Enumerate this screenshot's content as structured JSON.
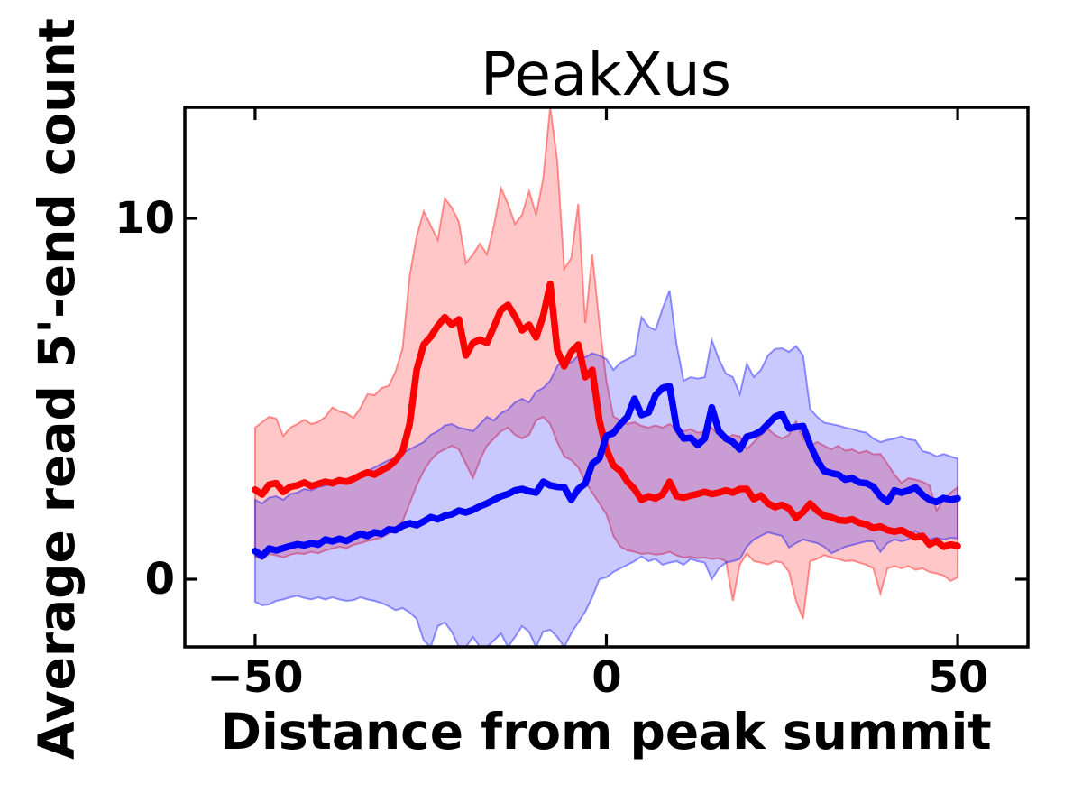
{
  "figure": {
    "background": "#ffffff"
  },
  "chart_data": {
    "type": "line",
    "title": "PeakXus",
    "xlabel": "Distance from peak summit",
    "ylabel": "Average read 5'-end count",
    "xlim": [
      -60,
      60
    ],
    "ylim": [
      -1.875,
      13.075
    ],
    "xticks": [
      -50,
      0,
      50
    ],
    "yticks": [
      0,
      10
    ],
    "xtick_labels": [
      "−50",
      "0",
      "50"
    ],
    "ytick_labels": [
      "0",
      "10"
    ],
    "grid": false,
    "legend": "none",
    "axis_color": "#000000",
    "x": [
      -50,
      -49,
      -48,
      -47,
      -46,
      -45,
      -44,
      -43,
      -42,
      -41,
      -40,
      -39,
      -38,
      -37,
      -36,
      -35,
      -34,
      -33,
      -32,
      -31,
      -30,
      -29,
      -28,
      -27,
      -26,
      -25,
      -24,
      -23,
      -22,
      -21,
      -20,
      -19,
      -18,
      -17,
      -16,
      -15,
      -14,
      -13,
      -12,
      -11,
      -10,
      -9,
      -8,
      -7,
      -6,
      -5,
      -4,
      -3,
      -2,
      -1,
      0,
      1,
      2,
      3,
      4,
      5,
      6,
      7,
      8,
      9,
      10,
      11,
      12,
      13,
      14,
      15,
      16,
      17,
      18,
      19,
      20,
      21,
      22,
      23,
      24,
      25,
      26,
      27,
      28,
      29,
      30,
      31,
      32,
      33,
      34,
      35,
      36,
      37,
      38,
      39,
      40,
      41,
      42,
      43,
      44,
      45,
      46,
      47,
      48,
      49,
      50
    ],
    "series": [
      {
        "name": "red-mean-line",
        "color": "#ff0000",
        "linewidth": 7.5,
        "values": [
          2.48,
          2.35,
          2.62,
          2.66,
          2.42,
          2.56,
          2.6,
          2.68,
          2.58,
          2.64,
          2.7,
          2.66,
          2.74,
          2.7,
          2.78,
          2.88,
          2.96,
          2.9,
          3.02,
          3.12,
          3.3,
          3.55,
          4.3,
          5.8,
          6.5,
          6.72,
          7.02,
          7.26,
          7.05,
          7.2,
          6.2,
          6.55,
          6.64,
          6.55,
          7.0,
          7.46,
          7.6,
          7.28,
          6.9,
          7.05,
          6.7,
          7.3,
          8.18,
          6.35,
          5.9,
          6.3,
          6.5,
          5.6,
          5.8,
          4.4,
          3.6,
          3.15,
          3.0,
          2.7,
          2.5,
          2.2,
          2.3,
          2.24,
          2.35,
          2.7,
          2.3,
          2.26,
          2.32,
          2.36,
          2.42,
          2.36,
          2.4,
          2.46,
          2.4,
          2.5,
          2.5,
          2.22,
          2.32,
          2.1,
          2.0,
          2.06,
          1.96,
          1.7,
          1.86,
          2.1,
          1.9,
          1.76,
          1.72,
          1.64,
          1.62,
          1.66,
          1.56,
          1.52,
          1.42,
          1.46,
          1.36,
          1.32,
          1.36,
          1.26,
          1.16,
          1.2,
          0.96,
          1.06,
          0.9,
          0.96,
          0.92
        ]
      },
      {
        "name": "blue-mean-line",
        "color": "#0000ff",
        "linewidth": 7.5,
        "values": [
          0.78,
          0.64,
          0.85,
          0.8,
          0.86,
          0.92,
          0.97,
          0.94,
          1.0,
          0.96,
          1.1,
          1.05,
          1.12,
          1.06,
          1.16,
          1.26,
          1.2,
          1.3,
          1.26,
          1.38,
          1.36,
          1.48,
          1.55,
          1.5,
          1.6,
          1.72,
          1.66,
          1.76,
          1.8,
          1.9,
          1.85,
          1.92,
          2.02,
          2.1,
          2.2,
          2.3,
          2.36,
          2.46,
          2.5,
          2.44,
          2.4,
          2.7,
          2.6,
          2.56,
          2.55,
          2.2,
          2.5,
          2.65,
          3.2,
          3.35,
          3.97,
          4.05,
          4.3,
          4.5,
          5.0,
          4.55,
          4.62,
          5.1,
          5.3,
          5.35,
          4.2,
          3.9,
          3.92,
          3.72,
          3.9,
          4.76,
          4.1,
          3.9,
          3.8,
          3.6,
          3.95,
          4.0,
          4.1,
          4.3,
          4.5,
          4.58,
          4.18,
          4.22,
          4.24,
          3.72,
          3.3,
          3.0,
          2.94,
          2.9,
          2.76,
          2.8,
          2.68,
          2.66,
          2.56,
          2.3,
          2.14,
          2.46,
          2.4,
          2.46,
          2.54,
          2.34,
          2.2,
          2.14,
          2.25,
          2.2,
          2.24
        ]
      }
    ],
    "bands": [
      {
        "name": "red-band",
        "color": "#ff0000",
        "fill_opacity": 0.22,
        "upper": [
          4.2,
          4.35,
          4.5,
          4.45,
          3.97,
          4.2,
          4.3,
          4.42,
          4.3,
          4.36,
          4.5,
          4.76,
          4.65,
          4.6,
          4.47,
          4.75,
          5.13,
          5.1,
          5.3,
          5.36,
          5.76,
          6.4,
          8.4,
          9.5,
          10.2,
          9.8,
          9.4,
          10.55,
          10.3,
          9.9,
          8.76,
          9.0,
          9.3,
          9.0,
          9.8,
          10.84,
          10.4,
          9.84,
          10.1,
          10.76,
          10.1,
          11.1,
          13.1,
          11.6,
          8.6,
          8.9,
          10.4,
          7.1,
          9.0,
          7.1,
          5.5,
          4.51,
          4.4,
          4.3,
          4.35,
          4.25,
          4.2,
          4.26,
          4.2,
          4.3,
          4.16,
          4.1,
          4.16,
          4.06,
          4.1,
          4.2,
          4.0,
          3.9,
          4.0,
          3.96,
          3.6,
          3.8,
          4.0,
          4.16,
          4.0,
          3.9,
          4.0,
          4.38,
          3.9,
          3.7,
          3.8,
          3.7,
          3.6,
          3.7,
          3.56,
          3.6,
          3.5,
          3.56,
          3.46,
          3.47,
          3.2,
          2.9,
          2.67,
          2.8,
          2.76,
          2.7,
          2.6,
          1.9,
          2.2,
          2.4,
          2.55
        ],
        "lower": [
          0.62,
          0.55,
          0.7,
          0.66,
          0.6,
          0.68,
          0.72,
          0.7,
          0.76,
          0.72,
          0.8,
          0.85,
          0.9,
          0.86,
          0.95,
          1.0,
          1.06,
          1.1,
          1.16,
          1.26,
          1.4,
          1.6,
          2.1,
          2.6,
          3.0,
          3.3,
          3.5,
          3.6,
          3.7,
          3.6,
          3.2,
          2.8,
          3.3,
          3.7,
          3.9,
          4.1,
          4.2,
          4.0,
          3.9,
          4.0,
          4.4,
          4.5,
          4.3,
          3.8,
          3.4,
          3.3,
          3.1,
          2.7,
          2.4,
          2.1,
          1.8,
          1.2,
          0.9,
          0.8,
          0.76,
          0.7,
          0.72,
          0.68,
          0.7,
          0.76,
          0.66,
          0.6,
          0.62,
          0.58,
          0.6,
          0.56,
          0.58,
          0.5,
          -0.6,
          0.4,
          0.71,
          0.5,
          0.46,
          0.41,
          0.5,
          0.46,
          0.2,
          -0.61,
          -1.1,
          0.5,
          0.56,
          0.67,
          0.6,
          0.56,
          0.5,
          0.52,
          0.46,
          0.4,
          0.3,
          -0.4,
          0.3,
          0.36,
          0.3,
          0.36,
          0.26,
          0.3,
          0.2,
          0.16,
          0.1,
          -0.05,
          0.05
        ]
      },
      {
        "name": "blue-band",
        "color": "#0000ff",
        "fill_opacity": 0.21,
        "upper": [
          2.2,
          2.1,
          2.26,
          2.3,
          2.2,
          2.36,
          2.4,
          2.5,
          2.46,
          2.56,
          2.6,
          2.7,
          2.76,
          2.7,
          2.8,
          2.9,
          3.0,
          3.1,
          3.2,
          3.3,
          3.36,
          3.5,
          3.6,
          3.7,
          3.8,
          4.0,
          4.1,
          4.26,
          4.3,
          4.2,
          4.16,
          4.1,
          4.3,
          4.5,
          4.4,
          4.6,
          4.7,
          4.9,
          5.0,
          4.9,
          5.2,
          5.3,
          5.5,
          5.9,
          6.1,
          6.0,
          6.2,
          6.15,
          6.26,
          6.2,
          6.1,
          5.8,
          6.0,
          6.1,
          6.2,
          7.26,
          7.0,
          6.9,
          7.5,
          8.0,
          6.5,
          5.5,
          5.6,
          5.56,
          5.6,
          6.63,
          6.1,
          5.7,
          5.6,
          5.13,
          5.97,
          5.6,
          5.8,
          6.2,
          6.38,
          6.4,
          6.3,
          6.46,
          6.2,
          4.72,
          4.5,
          4.34,
          4.3,
          4.26,
          4.2,
          4.16,
          4.1,
          4.06,
          3.9,
          3.8,
          3.86,
          3.9,
          3.96,
          3.88,
          3.85,
          3.55,
          3.5,
          3.4,
          3.47,
          3.4,
          3.34
        ],
        "lower": [
          -0.63,
          -0.72,
          -0.7,
          -0.6,
          -0.56,
          -0.5,
          -0.46,
          -0.52,
          -0.56,
          -0.5,
          -0.56,
          -0.5,
          -0.56,
          -0.6,
          -0.58,
          -0.5,
          -0.56,
          -0.6,
          -0.66,
          -0.75,
          -0.86,
          -0.8,
          -0.92,
          -1.1,
          -1.7,
          -1.88,
          -1.3,
          -1.2,
          -1.46,
          -1.88,
          -1.88,
          -1.6,
          -1.88,
          -1.88,
          -1.7,
          -1.5,
          -1.88,
          -1.6,
          -1.3,
          -1.46,
          -1.88,
          -1.45,
          -1.4,
          -1.6,
          -1.88,
          -1.5,
          -1.2,
          -0.9,
          -0.5,
          0.0,
          0.05,
          0.2,
          0.3,
          0.4,
          0.5,
          0.63,
          0.5,
          0.56,
          0.4,
          0.46,
          0.5,
          0.4,
          0.56,
          0.5,
          0.46,
          0.0,
          0.3,
          0.46,
          0.5,
          0.56,
          0.9,
          1.1,
          1.2,
          1.3,
          1.25,
          1.2,
          0.88,
          1.0,
          1.1,
          1.05,
          1.0,
          0.9,
          0.72,
          0.8,
          0.9,
          0.95,
          1.0,
          1.05,
          1.05,
          0.76,
          1.0,
          1.1,
          1.05,
          1.1,
          1.34,
          1.2,
          1.1,
          1.15,
          1.1,
          1.15,
          1.13
        ]
      }
    ]
  }
}
